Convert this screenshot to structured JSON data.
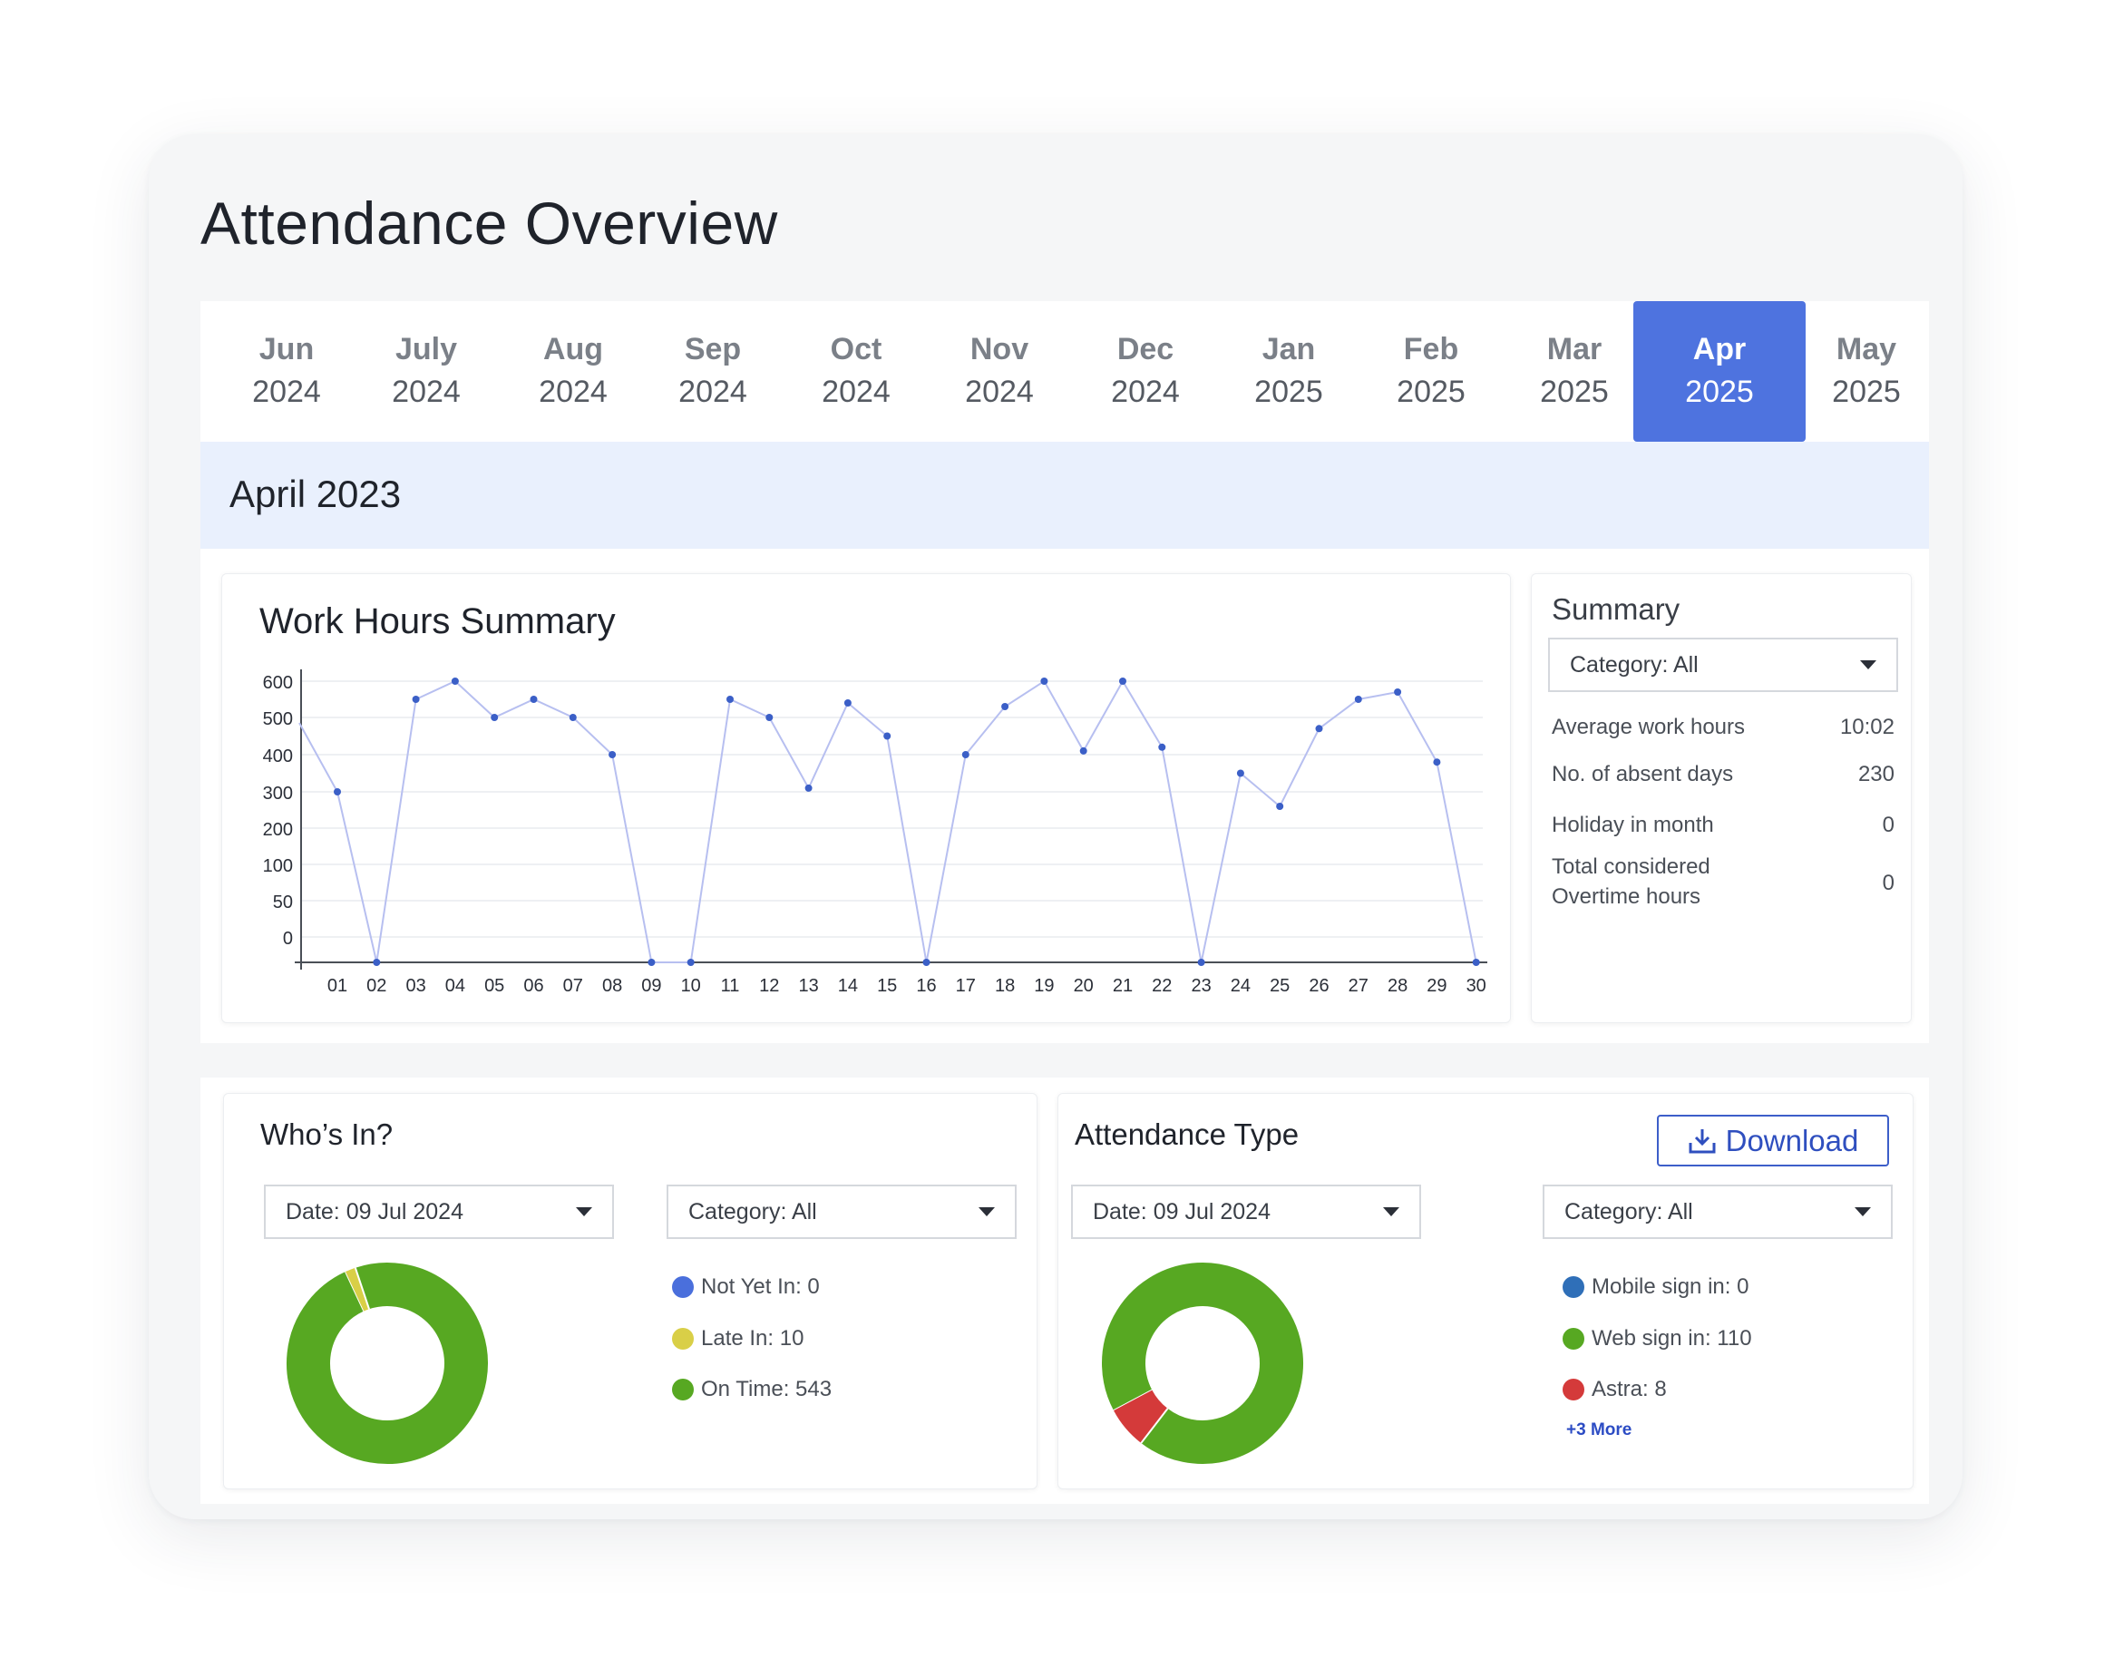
{
  "page": {
    "title": "Attendance Overview"
  },
  "months": [
    {
      "month": "Jun",
      "year": "2024",
      "active": false
    },
    {
      "month": "July",
      "year": "2024",
      "active": false
    },
    {
      "month": "Aug",
      "year": "2024",
      "active": false
    },
    {
      "month": "Sep",
      "year": "2024",
      "active": false
    },
    {
      "month": "Oct",
      "year": "2024",
      "active": false
    },
    {
      "month": "Nov",
      "year": "2024",
      "active": false
    },
    {
      "month": "Dec",
      "year": "2024",
      "active": false
    },
    {
      "month": "Jan",
      "year": "2025",
      "active": false
    },
    {
      "month": "Feb",
      "year": "2025",
      "active": false
    },
    {
      "month": "Mar",
      "year": "2025",
      "active": false
    },
    {
      "month": "Apr",
      "year": "2025",
      "active": true
    },
    {
      "month": "May",
      "year": "2025",
      "active": false
    }
  ],
  "period": {
    "label": "April 2023"
  },
  "work_hours": {
    "title": "Work Hours Summary",
    "chart_data": {
      "type": "line",
      "title": "Work Hours Summary",
      "x": [
        "01",
        "02",
        "03",
        "04",
        "05",
        "06",
        "07",
        "08",
        "09",
        "10",
        "11",
        "12",
        "13",
        "14",
        "15",
        "16",
        "17",
        "18",
        "19",
        "20",
        "21",
        "22",
        "23",
        "24",
        "25",
        "26",
        "27",
        "28",
        "29",
        "30"
      ],
      "y_ticks": [
        "600",
        "500",
        "400",
        "300",
        "200",
        "100",
        "50",
        "0"
      ],
      "series": [
        {
          "values": [
            300,
            0,
            550,
            600,
            500,
            550,
            500,
            400,
            0,
            0,
            550,
            500,
            310,
            540,
            450,
            0,
            400,
            530,
            600,
            410,
            600,
            420,
            0,
            350,
            260,
            470,
            550,
            570,
            380,
            0
          ]
        }
      ],
      "grid": true,
      "color": "#b7bff0",
      "point_color": "#3b5fc7"
    }
  },
  "summary": {
    "title": "Summary",
    "category_dropdown": "Category: All",
    "rows": [
      {
        "label": "Average work hours",
        "value": "10:02"
      },
      {
        "label": "No. of absent days",
        "value": "230"
      },
      {
        "label": "Holiday in month",
        "value": "0"
      },
      {
        "label_line1": "Total considered",
        "label_line2": "Overtime hours",
        "value": "0"
      }
    ]
  },
  "whos_in": {
    "title": "Who’s In?",
    "date_dropdown": "Date: 09 Jul 2024",
    "category_dropdown": "Category: All",
    "chart_data": {
      "type": "pie",
      "slices": [
        {
          "label": "Not Yet In: 0",
          "value": 0,
          "color": "#4a6fdc"
        },
        {
          "label": "Late In: 10",
          "value": 10,
          "color": "#d9cf47"
        },
        {
          "label": "On Time: 543",
          "value": 543,
          "color": "#57a822"
        }
      ]
    }
  },
  "attendance_type": {
    "title": "Attendance Type",
    "download_label": "Download",
    "date_dropdown": "Date: 09 Jul 2024",
    "category_dropdown": "Category: All",
    "more_link": "+3 More",
    "chart_data": {
      "type": "pie",
      "slices": [
        {
          "label": "Mobile sign in: 0",
          "value": 0,
          "color": "#2f6fb8"
        },
        {
          "label": "Web sign in: 110",
          "value": 110,
          "color": "#57a822"
        },
        {
          "label": "Astra: 8",
          "value": 8,
          "color": "#d43a3a"
        }
      ]
    }
  }
}
